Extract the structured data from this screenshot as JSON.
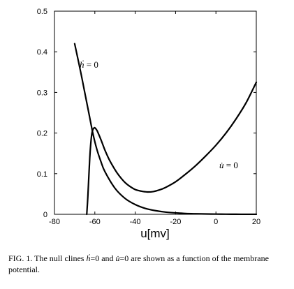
{
  "chart_data": {
    "type": "line",
    "xlabel": "u[mv]",
    "ylabel": "",
    "xlim": [
      -80,
      20
    ],
    "ylim": [
      0,
      0.5
    ],
    "x_ticks": [
      "-80",
      "-60",
      "-40",
      "-20",
      "0",
      "20"
    ],
    "y_ticks": [
      "0",
      "0.1",
      "0.2",
      "0.3",
      "0.4",
      "0.5"
    ],
    "grid": false,
    "series": [
      {
        "name": "h-nullcline",
        "label": "ḣ = 0",
        "x": [
          -70,
          -67,
          -65,
          -63,
          -61,
          -59,
          -57,
          -55,
          -50,
          -45,
          -40,
          -35,
          -30,
          -25,
          -20,
          -15,
          -10,
          -5,
          0,
          5,
          10,
          15,
          20
        ],
        "y": [
          0.42,
          0.35,
          0.3,
          0.25,
          0.2,
          0.16,
          0.13,
          0.105,
          0.064,
          0.039,
          0.024,
          0.0145,
          0.009,
          0.0055,
          0.0035,
          0.002,
          0.0013,
          0.0008,
          0.0005,
          0.0003,
          0.0002,
          0.0001,
          0.0001
        ]
      },
      {
        "name": "u-nullcline",
        "label": "u̇ = 0",
        "x": [
          -64,
          -63.5,
          -63,
          -62.5,
          -62,
          -61.5,
          -61,
          -60.5,
          -60,
          -59,
          -58,
          -57,
          -56,
          -55,
          -53,
          -51,
          -49,
          -47,
          -45,
          -43,
          -40,
          -37,
          -34,
          -31,
          -28,
          -25,
          -20,
          -15,
          -10,
          -5,
          0,
          5,
          10,
          15,
          20
        ],
        "y": [
          0.0,
          0.04,
          0.09,
          0.14,
          0.175,
          0.198,
          0.208,
          0.212,
          0.213,
          0.207,
          0.196,
          0.184,
          0.171,
          0.158,
          0.136,
          0.118,
          0.102,
          0.089,
          0.078,
          0.07,
          0.061,
          0.057,
          0.055,
          0.056,
          0.06,
          0.066,
          0.08,
          0.099,
          0.12,
          0.144,
          0.17,
          0.2,
          0.235,
          0.275,
          0.325
        ]
      }
    ]
  },
  "caption": {
    "prefix": "FIG. 1. The null clines ",
    "h_symbol": "ḣ",
    "eq1": "=0 and ",
    "u_symbol": "u̇",
    "suffix": "=0 are shown as a function of the membrane potential."
  },
  "labels": {
    "h_symbol": "ḣ",
    "h_eq": " = 0",
    "u_symbol": "u̇",
    "u_eq": " = 0"
  }
}
